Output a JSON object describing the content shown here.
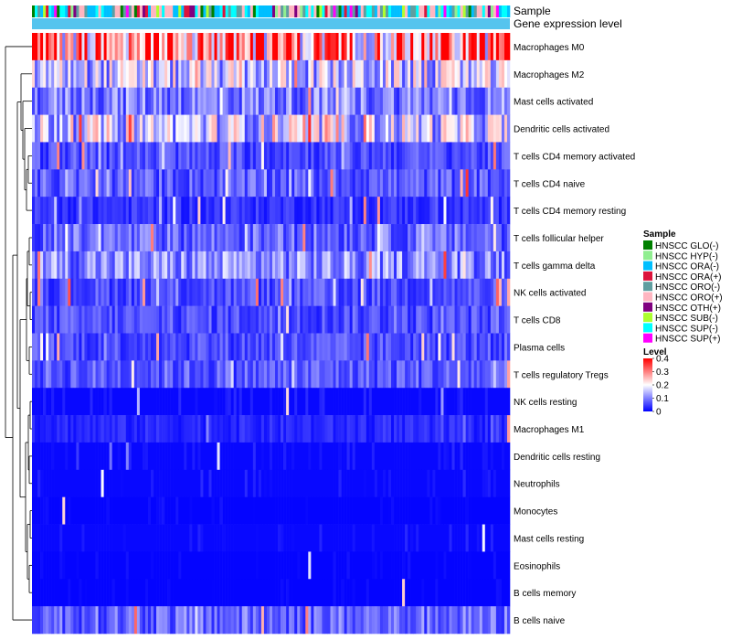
{
  "chart_data": {
    "type": "heatmap",
    "title": "",
    "annotation_tracks": [
      "Sample",
      "Gene expression level"
    ],
    "rows": [
      "Macrophages M0",
      "Macrophages M2",
      "Mast cells activated",
      "Dendritic cells activated",
      "T cells CD4 memory activated",
      "T cells CD4 naive",
      "T cells CD4 memory resting",
      "T cells follicular helper",
      "T cells gamma delta",
      "NK cells activated",
      "T cells CD8",
      "Plasma cells",
      "T cells regulatory  Tregs",
      "NK cells resting",
      "Macrophages M1",
      "Dendritic cells resting",
      "Neutrophils",
      "Monocytes",
      "Mast cells resting",
      "Eosinophils",
      "B cells memory",
      "B cells naive"
    ],
    "n_samples": 173,
    "row_typical_level": [
      0.3,
      0.15,
      0.1,
      0.16,
      0.06,
      0.07,
      0.04,
      0.08,
      0.11,
      0.06,
      0.06,
      0.06,
      0.07,
      0.02,
      0.03,
      0.02,
      0.02,
      0.01,
      0.02,
      0.01,
      0.01,
      0.08
    ],
    "color_scale": {
      "min": 0,
      "max": 0.4,
      "low": "#0000ff",
      "mid": "#ffffff",
      "high": "#ff0000",
      "mid_value": 0.2
    },
    "legend_sample": {
      "title": "Sample",
      "items": [
        {
          "label": "HNSCC GLO(-)",
          "color": "#008000"
        },
        {
          "label": "HNSCC HYP(-)",
          "color": "#90ee90"
        },
        {
          "label": "HNSCC ORA(-)",
          "color": "#00bfff"
        },
        {
          "label": "HNSCC ORA(+)",
          "color": "#dc143c"
        },
        {
          "label": "HNSCC ORO(-)",
          "color": "#5f9ea0"
        },
        {
          "label": "HNSCC ORO(+)",
          "color": "#ffb6c1"
        },
        {
          "label": "HNSCC OTH(+)",
          "color": "#800080"
        },
        {
          "label": "HNSCC SUB(-)",
          "color": "#adff2f"
        },
        {
          "label": "HNSCC SUP(-)",
          "color": "#00ffff"
        },
        {
          "label": "HNSCC SUP(+)",
          "color": "#ff00ff"
        }
      ]
    },
    "legend_level": {
      "title": "Level",
      "ticks": [
        0.4,
        0.3,
        0.2,
        0.1,
        0
      ]
    },
    "gene_expression_track_color": "#55c4ee",
    "row_dendrogram": true
  }
}
